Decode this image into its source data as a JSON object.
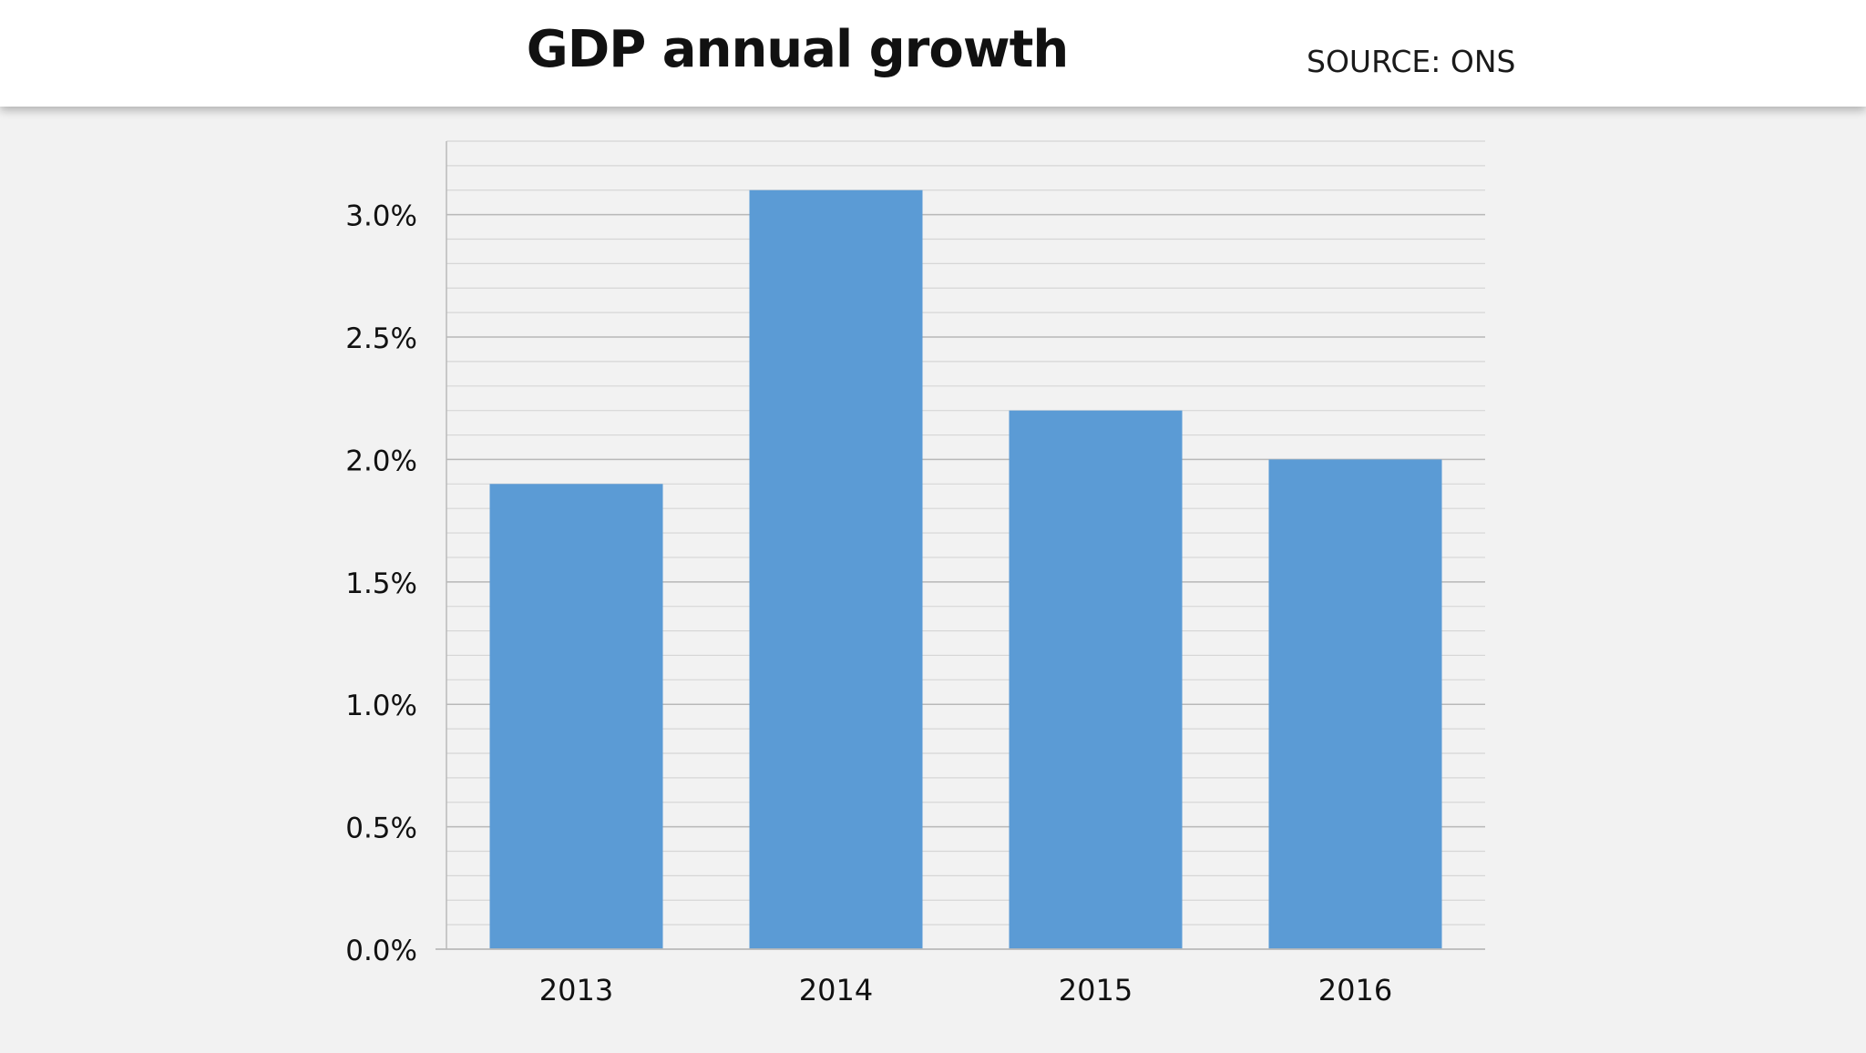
{
  "header": {
    "title": "GDP annual growth",
    "source": "SOURCE: ONS"
  },
  "colors": {
    "bar": "#5b9bd5",
    "background": "#f2f2f2",
    "header_bg": "#ffffff",
    "gridline": "#b9b9b9",
    "minor_gridline": "#d6d6d6",
    "text": "#111111"
  },
  "chart_data": {
    "type": "bar",
    "title": "GDP annual growth",
    "categories": [
      "2013",
      "2014",
      "2015",
      "2016"
    ],
    "values": [
      1.9,
      3.1,
      2.2,
      2.0
    ],
    "value_unit": "%",
    "ylim": [
      0,
      3.3
    ],
    "ytick_values": [
      0,
      0.5,
      1.0,
      1.5,
      2.0,
      2.5,
      3.0
    ],
    "ytick_labels": [
      "0.0%",
      "0.5%",
      "1.0%",
      "1.5%",
      "2.0%",
      "2.5%",
      "3.0%"
    ],
    "minor_tick_step": 0.1,
    "grid": true,
    "legend": "none",
    "xlabel": "",
    "ylabel": ""
  }
}
